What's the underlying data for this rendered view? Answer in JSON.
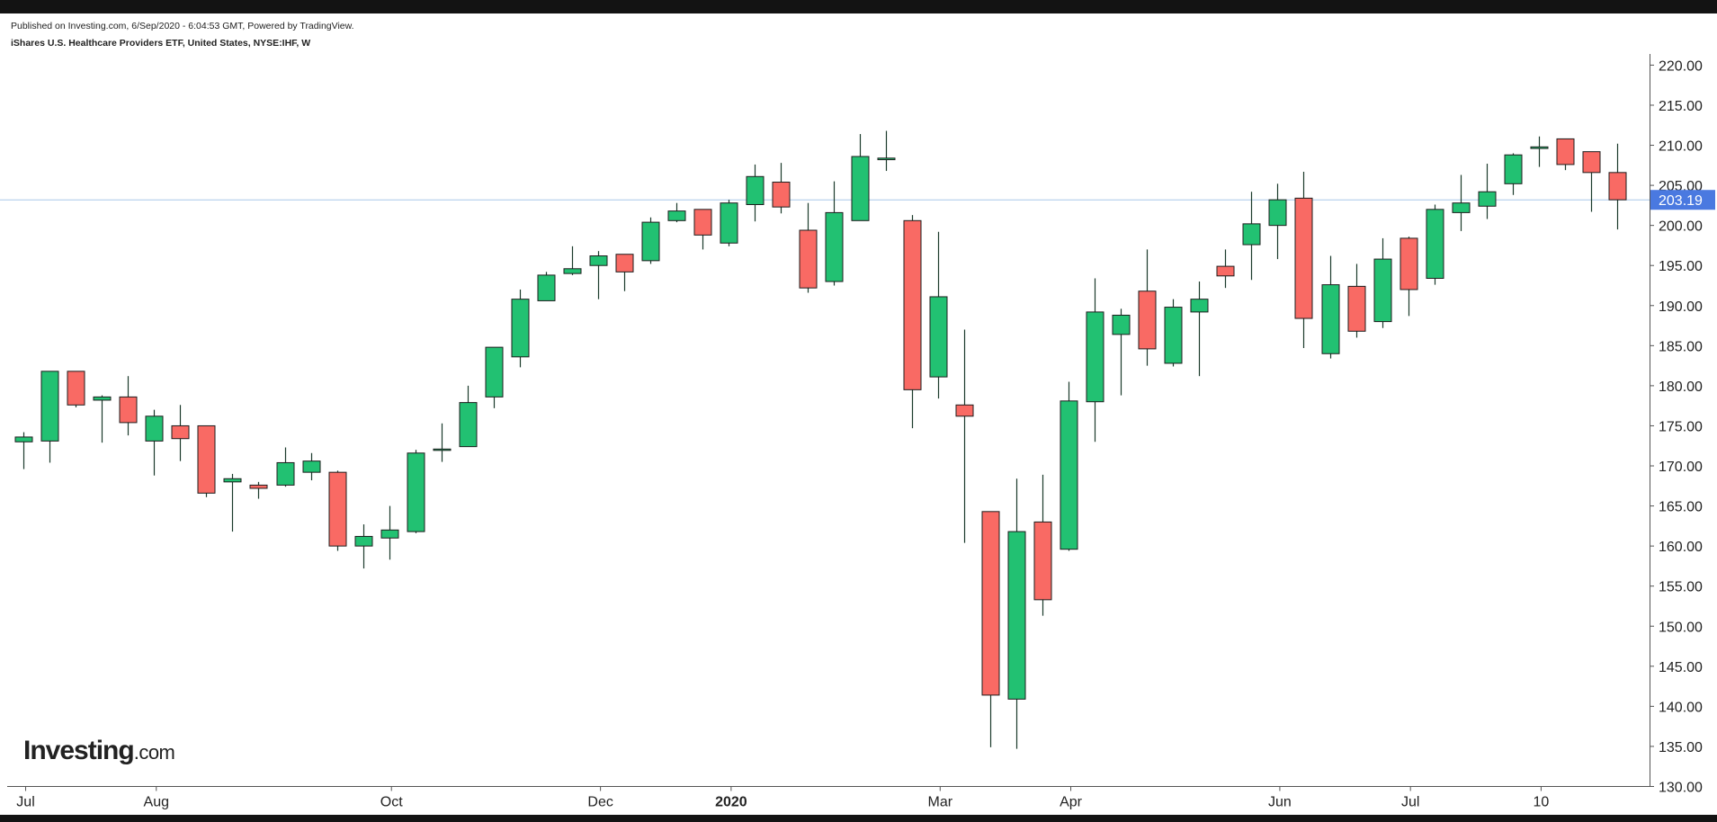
{
  "header": {
    "published": "Published on Investing.com, 6/Sep/2020 - 6:04:53 GMT, Powered by TradingView.",
    "symbol": "iShares U.S. Healthcare Providers ETF, United States, NYSE:IHF, W"
  },
  "logo": {
    "brand": "Investing",
    "domain": ".com"
  },
  "colors": {
    "up": "#22c172",
    "down": "#f96a64",
    "wick": "#1b3a2b",
    "price_line": "#a9c7e8",
    "price_label_bg": "#4a79e0",
    "axis": "#555555"
  },
  "chart_data": {
    "type": "candlestick",
    "interval": "W",
    "ylim": [
      130,
      221
    ],
    "y_ticks": [
      "220.00",
      "215.00",
      "210.00",
      "205.00",
      "200.00",
      "195.00",
      "190.00",
      "185.00",
      "180.00",
      "175.00",
      "170.00",
      "165.00",
      "160.00",
      "155.00",
      "150.00",
      "145.00",
      "140.00",
      "135.00",
      "130.00"
    ],
    "x_ticks": [
      {
        "label": "Jul",
        "index": 0.5
      },
      {
        "label": "Aug",
        "index": 5.5
      },
      {
        "label": "Oct",
        "index": 14.5
      },
      {
        "label": "Dec",
        "index": 22.5
      },
      {
        "label": "2020",
        "index": 27.5,
        "bold": true
      },
      {
        "label": "Mar",
        "index": 35.5
      },
      {
        "label": "Apr",
        "index": 40.5
      },
      {
        "label": "Jun",
        "index": 48.5
      },
      {
        "label": "Jul",
        "index": 53.5
      },
      {
        "label": "10",
        "index": 58.5
      }
    ],
    "last_price": 203.19,
    "last_price_label": "203.19",
    "candles": [
      {
        "o": 173.0,
        "h": 174.2,
        "l": 169.6,
        "c": 173.6
      },
      {
        "o": 173.1,
        "h": 181.8,
        "l": 170.4,
        "c": 181.8
      },
      {
        "o": 181.8,
        "h": 181.8,
        "l": 177.3,
        "c": 177.6
      },
      {
        "o": 178.2,
        "h": 178.8,
        "l": 172.9,
        "c": 178.6
      },
      {
        "o": 178.6,
        "h": 181.2,
        "l": 173.8,
        "c": 175.4
      },
      {
        "o": 173.1,
        "h": 177.0,
        "l": 168.8,
        "c": 176.2
      },
      {
        "o": 175.0,
        "h": 177.6,
        "l": 170.6,
        "c": 173.4
      },
      {
        "o": 175.0,
        "h": 175.0,
        "l": 166.1,
        "c": 166.6
      },
      {
        "o": 168.0,
        "h": 169.0,
        "l": 161.8,
        "c": 168.4
      },
      {
        "o": 167.6,
        "h": 168.0,
        "l": 165.9,
        "c": 167.2
      },
      {
        "o": 167.6,
        "h": 172.3,
        "l": 167.4,
        "c": 170.4
      },
      {
        "o": 169.2,
        "h": 171.6,
        "l": 168.2,
        "c": 170.6
      },
      {
        "o": 169.2,
        "h": 169.4,
        "l": 159.4,
        "c": 160.0
      },
      {
        "o": 160.0,
        "h": 162.7,
        "l": 157.2,
        "c": 161.2
      },
      {
        "o": 161.0,
        "h": 165.0,
        "l": 158.3,
        "c": 162.0
      },
      {
        "o": 161.8,
        "h": 172.0,
        "l": 161.6,
        "c": 171.6
      },
      {
        "o": 172.0,
        "h": 175.3,
        "l": 170.5,
        "c": 172.1
      },
      {
        "o": 172.4,
        "h": 180.0,
        "l": 172.4,
        "c": 177.9
      },
      {
        "o": 178.6,
        "h": 184.8,
        "l": 177.2,
        "c": 184.8
      },
      {
        "o": 183.6,
        "h": 192.0,
        "l": 182.3,
        "c": 190.8
      },
      {
        "o": 190.6,
        "h": 194.2,
        "l": 190.6,
        "c": 193.8
      },
      {
        "o": 194.0,
        "h": 197.4,
        "l": 193.8,
        "c": 194.6
      },
      {
        "o": 195.0,
        "h": 196.8,
        "l": 190.8,
        "c": 196.2
      },
      {
        "o": 196.4,
        "h": 196.4,
        "l": 191.8,
        "c": 194.2
      },
      {
        "o": 195.6,
        "h": 201.0,
        "l": 195.2,
        "c": 200.4
      },
      {
        "o": 200.6,
        "h": 202.8,
        "l": 200.4,
        "c": 201.8
      },
      {
        "o": 202.0,
        "h": 202.0,
        "l": 197.0,
        "c": 198.8
      },
      {
        "o": 197.8,
        "h": 203.2,
        "l": 197.4,
        "c": 202.8
      },
      {
        "o": 202.6,
        "h": 207.6,
        "l": 200.5,
        "c": 206.1
      },
      {
        "o": 205.4,
        "h": 207.8,
        "l": 201.5,
        "c": 202.3
      },
      {
        "o": 199.4,
        "h": 202.8,
        "l": 191.6,
        "c": 192.2
      },
      {
        "o": 193.0,
        "h": 205.5,
        "l": 192.5,
        "c": 201.6
      },
      {
        "o": 200.6,
        "h": 211.4,
        "l": 200.6,
        "c": 208.6
      },
      {
        "o": 208.2,
        "h": 211.8,
        "l": 206.8,
        "c": 208.4
      },
      {
        "o": 200.6,
        "h": 201.3,
        "l": 174.7,
        "c": 179.5
      },
      {
        "o": 181.1,
        "h": 199.2,
        "l": 178.4,
        "c": 191.1
      },
      {
        "o": 177.6,
        "h": 187.0,
        "l": 160.4,
        "c": 176.2
      },
      {
        "o": 164.3,
        "h": 164.3,
        "l": 134.9,
        "c": 141.4
      },
      {
        "o": 140.9,
        "h": 168.4,
        "l": 134.7,
        "c": 161.8
      },
      {
        "o": 163.0,
        "h": 168.9,
        "l": 151.3,
        "c": 153.3
      },
      {
        "o": 159.6,
        "h": 180.5,
        "l": 159.4,
        "c": 178.1
      },
      {
        "o": 178.0,
        "h": 193.4,
        "l": 173.0,
        "c": 189.2
      },
      {
        "o": 186.4,
        "h": 189.6,
        "l": 178.8,
        "c": 188.8
      },
      {
        "o": 191.8,
        "h": 197.0,
        "l": 182.5,
        "c": 184.6
      },
      {
        "o": 182.8,
        "h": 190.8,
        "l": 182.4,
        "c": 189.8
      },
      {
        "o": 189.2,
        "h": 193.0,
        "l": 181.2,
        "c": 190.8
      },
      {
        "o": 194.9,
        "h": 197.0,
        "l": 192.2,
        "c": 193.7
      },
      {
        "o": 197.6,
        "h": 204.2,
        "l": 193.2,
        "c": 200.2
      },
      {
        "o": 200.0,
        "h": 205.2,
        "l": 195.8,
        "c": 203.2
      },
      {
        "o": 203.4,
        "h": 206.7,
        "l": 184.7,
        "c": 188.4
      },
      {
        "o": 184.0,
        "h": 196.2,
        "l": 183.4,
        "c": 192.6
      },
      {
        "o": 192.4,
        "h": 195.2,
        "l": 186.0,
        "c": 186.8
      },
      {
        "o": 188.0,
        "h": 198.4,
        "l": 187.2,
        "c": 195.8
      },
      {
        "o": 198.4,
        "h": 198.6,
        "l": 188.7,
        "c": 192.0
      },
      {
        "o": 193.4,
        "h": 202.6,
        "l": 192.6,
        "c": 202.0
      },
      {
        "o": 201.6,
        "h": 206.3,
        "l": 199.3,
        "c": 202.8
      },
      {
        "o": 202.4,
        "h": 207.7,
        "l": 200.8,
        "c": 204.2
      },
      {
        "o": 205.2,
        "h": 209.0,
        "l": 203.8,
        "c": 208.8
      },
      {
        "o": 209.6,
        "h": 211.1,
        "l": 207.3,
        "c": 209.8
      },
      {
        "o": 210.8,
        "h": 210.8,
        "l": 206.9,
        "c": 207.6
      },
      {
        "o": 209.2,
        "h": 209.2,
        "l": 201.7,
        "c": 206.6
      },
      {
        "o": 206.6,
        "h": 210.2,
        "l": 199.5,
        "c": 203.2
      }
    ]
  }
}
